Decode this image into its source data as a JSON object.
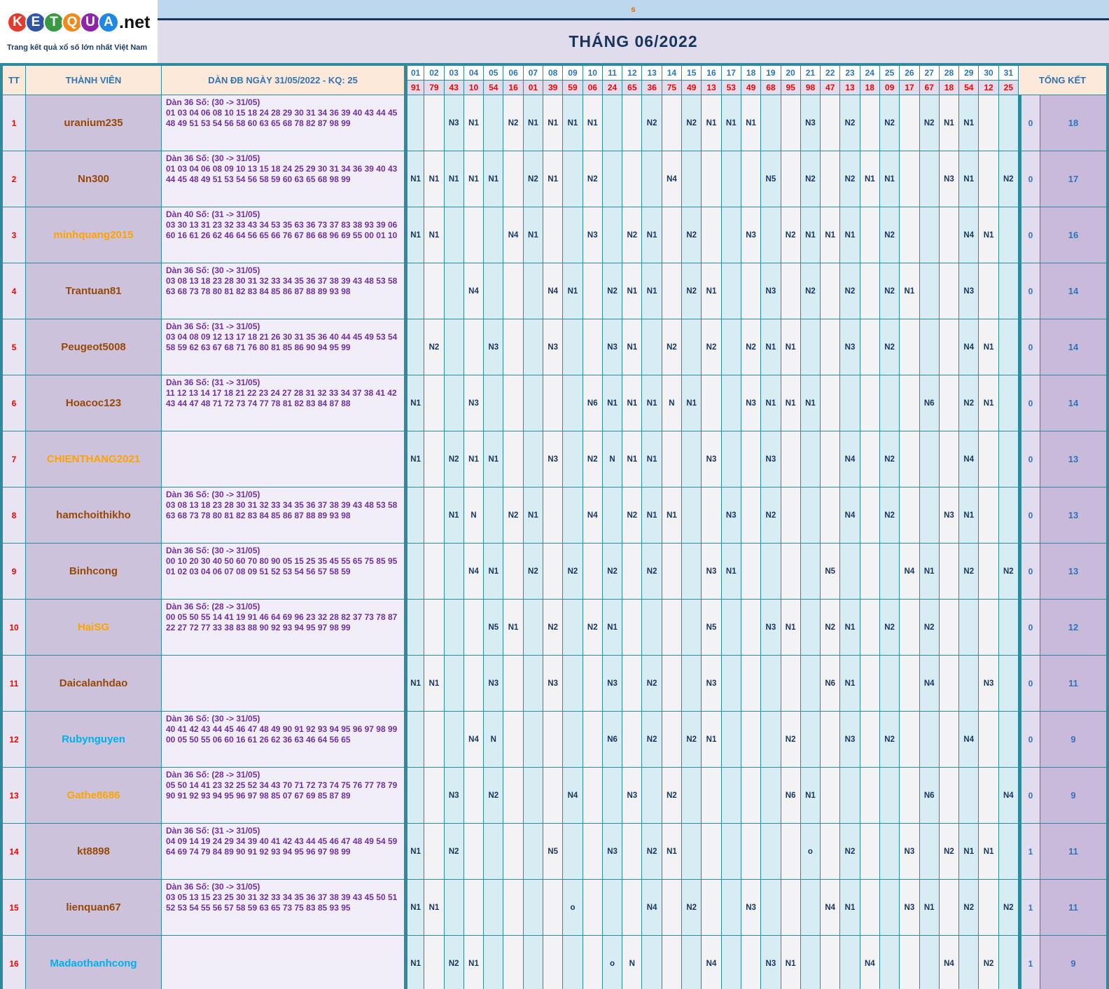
{
  "logo": {
    "letters": [
      {
        "ch": "K",
        "color": "#e23b30"
      },
      {
        "ch": "E",
        "color": "#2f55a4"
      },
      {
        "ch": "T",
        "color": "#3a9a44"
      },
      {
        "ch": "Q",
        "color": "#f08a1d"
      },
      {
        "ch": "U",
        "color": "#8e24aa"
      },
      {
        "ch": "A",
        "color": "#1e88e5"
      }
    ],
    "suffix": ".net",
    "tagline": "Trang kết quả xổ số lớn nhất Việt Nam"
  },
  "top": {
    "s_label": "s",
    "title": "THÁNG 06/2022"
  },
  "colors": {
    "border_teal": "#2e8b9c",
    "header_peach": "#fde9d9",
    "header_blue_text": "#2e75b6",
    "result_red": "#ff0000",
    "nvalue_navy": "#17365d",
    "desc_purple": "#7030a0",
    "member_bg": "#cdc2dc",
    "strip_blue": "#bdd7ee",
    "band_lavender": "#e1dcec",
    "name_brown": "#974806",
    "name_orange": "#ffa300",
    "name_cyan": "#00b0f0"
  },
  "table": {
    "headers": {
      "tt": "TT",
      "member": "THÀNH VIÊN",
      "dan": "DÀN ĐB NGÀY 31/05/2022 - KQ: 25",
      "tongket": "TỔNG KẾT"
    },
    "days": [
      "01",
      "02",
      "03",
      "04",
      "05",
      "06",
      "07",
      "08",
      "09",
      "10",
      "11",
      "12",
      "13",
      "14",
      "15",
      "16",
      "17",
      "18",
      "19",
      "20",
      "21",
      "22",
      "23",
      "24",
      "25",
      "26",
      "27",
      "28",
      "29",
      "30",
      "31"
    ],
    "results": [
      "91",
      "79",
      "43",
      "10",
      "54",
      "16",
      "01",
      "39",
      "59",
      "06",
      "24",
      "65",
      "36",
      "75",
      "49",
      "13",
      "53",
      "49",
      "68",
      "95",
      "98",
      "47",
      "13",
      "18",
      "09",
      "17",
      "67",
      "18",
      "54",
      "12",
      "25"
    ],
    "rows": [
      {
        "tt": "1",
        "name": "uranium235",
        "name_color": "#974806",
        "desc_title": "Dàn 36 Số: (30 -> 31/05)",
        "desc_numbers": "01 03 04 06 08 10 15 18 24 28 29 30 31 34 36 39 40 43 44 45 48 49 51 53 54 56 58 60 63 65 68 78 82 87 98 99",
        "cells": {
          "3": "N3",
          "4": "N1",
          "6": "N2",
          "7": "N1",
          "8": "N1",
          "9": "N1",
          "10": "N1",
          "13": "N2",
          "15": "N2",
          "16": "N1",
          "17": "N1",
          "18": "N1",
          "21": "N3",
          "23": "N2",
          "25": "N2",
          "27": "N2",
          "28": "N1",
          "29": "N1"
        },
        "t1": "0",
        "t2": "18"
      },
      {
        "tt": "2",
        "name": "Nn300",
        "name_color": "#974806",
        "desc_title": "Dàn 36 Số: (30 -> 31/05)",
        "desc_numbers": "01 03 04 06 08 09 10 13 15 18 24 25 29 30 31 34 36 39 40 43 44 45 48 49 51 53 54 56 58 59 60 63 65 68 98 99",
        "cells": {
          "1": "N1",
          "2": "N1",
          "3": "N1",
          "4": "N1",
          "5": "N1",
          "7": "N2",
          "8": "N1",
          "10": "N2",
          "14": "N4",
          "19": "N5",
          "21": "N2",
          "23": "N2",
          "24": "N1",
          "25": "N1",
          "28": "N3",
          "29": "N1",
          "31": "N2"
        },
        "t1": "0",
        "t2": "17"
      },
      {
        "tt": "3",
        "name": "minhquang2015",
        "name_color": "#ffa300",
        "desc_title": "Dàn 40 Số: (31 -> 31/05)",
        "desc_numbers": "03 30 13 31 23 32 33 43 34 53 35 63 36 73 37 83 38 93 39 06 60 16 61 26 62 46 64 56 65 66 76 67 86 68 96 69 55 00 01 10",
        "cells": {
          "1": "N1",
          "2": "N1",
          "6": "N4",
          "7": "N1",
          "10": "N3",
          "12": "N2",
          "13": "N1",
          "15": "N2",
          "18": "N3",
          "20": "N2",
          "21": "N1",
          "22": "N1",
          "23": "N1",
          "25": "N2",
          "29": "N4",
          "30": "N1"
        },
        "t1": "0",
        "t2": "16"
      },
      {
        "tt": "4",
        "name": "Trantuan81",
        "name_color": "#974806",
        "desc_title": "Dàn 36 Số: (30 -> 31/05)",
        "desc_numbers": "03 08 13 18 23 28 30 31 32 33 34 35 36 37 38 39 43 48 53 58 63 68 73 78 80 81 82 83 84 85 86 87 88 89 93 98",
        "cells": {
          "4": "N4",
          "8": "N4",
          "9": "N1",
          "11": "N2",
          "12": "N1",
          "13": "N1",
          "15": "N2",
          "16": "N1",
          "19": "N3",
          "21": "N2",
          "23": "N2",
          "25": "N2",
          "26": "N1",
          "29": "N3"
        },
        "t1": "0",
        "t2": "14"
      },
      {
        "tt": "5",
        "name": "Peugeot5008",
        "name_color": "#974806",
        "desc_title": "Dàn 36 Số: (31 -> 31/05)",
        "desc_numbers": "03 04 08 09 12 13 17 18 21 26 30 31 35 36 40 44 45 49 53 54 58 59 62 63 67 68 71 76 80 81 85 86 90 94 95 99",
        "cells": {
          "2": "N2",
          "5": "N3",
          "8": "N3",
          "11": "N3",
          "12": "N1",
          "14": "N2",
          "16": "N2",
          "18": "N2",
          "19": "N1",
          "20": "N1",
          "23": "N3",
          "25": "N2",
          "29": "N4",
          "30": "N1"
        },
        "t1": "0",
        "t2": "14"
      },
      {
        "tt": "6",
        "name": "Hoacoc123",
        "name_color": "#974806",
        "desc_title": "Dàn 36 Số: (31 -> 31/05)",
        "desc_numbers": "11 12 13 14 17 18 21 22 23 24 27 28 31 32 33 34 37 38 41 42 43 44 47 48 71 72 73 74 77 78 81 82 83 84 87 88",
        "cells": {
          "1": "N1",
          "4": "N3",
          "10": "N6",
          "11": "N1",
          "12": "N1",
          "13": "N1",
          "14": "N",
          "15": "N1",
          "18": "N3",
          "19": "N1",
          "20": "N1",
          "21": "N1",
          "27": "N6",
          "29": "N2",
          "30": "N1"
        },
        "t1": "0",
        "t2": "14"
      },
      {
        "tt": "7",
        "name": "CHIENTHANG2021",
        "name_color": "#ffa300",
        "desc_title": "",
        "desc_numbers": "",
        "cells": {
          "1": "N1",
          "3": "N2",
          "4": "N1",
          "5": "N1",
          "8": "N3",
          "10": "N2",
          "11": "N",
          "12": "N1",
          "13": "N1",
          "16": "N3",
          "19": "N3",
          "23": "N4",
          "25": "N2",
          "29": "N4"
        },
        "t1": "0",
        "t2": "13"
      },
      {
        "tt": "8",
        "name": "hamchoithikho",
        "name_color": "#974806",
        "desc_title": "Dàn 36 Số: (30 -> 31/05)",
        "desc_numbers": "03 08 13 18 23 28 30 31 32 33 34 35 36 37 38 39 43 48 53 58 63 68 73 78 80 81 82 83 84 85 86 87 88 89 93 98",
        "cells": {
          "3": "N1",
          "4": "N",
          "6": "N2",
          "7": "N1",
          "10": "N4",
          "12": "N2",
          "13": "N1",
          "14": "N1",
          "17": "N3",
          "19": "N2",
          "23": "N4",
          "25": "N2",
          "28": "N3",
          "29": "N1"
        },
        "t1": "0",
        "t2": "13"
      },
      {
        "tt": "9",
        "name": "Binhcong",
        "name_color": "#974806",
        "desc_title": "Dàn 36 Số: (30 -> 31/05)",
        "desc_numbers": "00 10 20 30 40 50 60 70 80 90 05 15 25 35 45 55 65 75 85 95 01 02 03 04 06 07 08 09 51 52 53 54 56 57 58 59",
        "cells": {
          "4": "N4",
          "5": "N1",
          "7": "N2",
          "9": "N2",
          "11": "N2",
          "13": "N2",
          "16": "N3",
          "17": "N1",
          "22": "N5",
          "26": "N4",
          "27": "N1",
          "29": "N2",
          "31": "N2"
        },
        "t1": "0",
        "t2": "13"
      },
      {
        "tt": "10",
        "name": "HaiSG",
        "name_color": "#ffa300",
        "desc_title": "Dàn 36 Số: (28 -> 31/05)",
        "desc_numbers": "00 05 50 55 14 41 19 91 46 64 69 96 23 32 28 82 37 73 78 87 22 27 72 77 33 38 83 88 90 92 93 94 95 97 98 99",
        "cells": {
          "5": "N5",
          "6": "N1",
          "8": "N2",
          "10": "N2",
          "11": "N1",
          "16": "N5",
          "19": "N3",
          "20": "N1",
          "22": "N2",
          "23": "N1",
          "25": "N2",
          "27": "N2"
        },
        "t1": "0",
        "t2": "12"
      },
      {
        "tt": "11",
        "name": "Daicalanhdao",
        "name_color": "#974806",
        "desc_title": "",
        "desc_numbers": "",
        "cells": {
          "1": "N1",
          "2": "N1",
          "5": "N3",
          "8": "N3",
          "11": "N3",
          "13": "N2",
          "16": "N3",
          "22": "N6",
          "23": "N1",
          "27": "N4",
          "30": "N3"
        },
        "t1": "0",
        "t2": "11"
      },
      {
        "tt": "12",
        "name": "Rubynguyen",
        "name_color": "#00b0f0",
        "desc_title": "Dàn 36 Số: (30 -> 31/05)",
        "desc_numbers": "40 41 42 43 44 45 46 47 48 49 90 91 92 93 94 95 96 97 98 99 00 05 50 55 06 60 16 61 26 62 36 63 46 64 56 65",
        "cells": {
          "4": "N4",
          "5": "N",
          "11": "N6",
          "13": "N2",
          "15": "N2",
          "16": "N1",
          "20": "N2",
          "23": "N3",
          "25": "N2",
          "29": "N4"
        },
        "t1": "0",
        "t2": "9"
      },
      {
        "tt": "13",
        "name": "Gathe8686",
        "name_color": "#ffa300",
        "desc_title": "Dàn 36 Số: (28 -> 31/05)",
        "desc_numbers": "05 50 14 41 23 32 25 52 34 43 70 71 72 73 74 75 76 77 78 79 90 91 92 93 94 95 96 97 98 85 07 67 69 85 87 89",
        "cells": {
          "3": "N3",
          "5": "N2",
          "9": "N4",
          "12": "N3",
          "14": "N2",
          "20": "N6",
          "21": "N1",
          "27": "N6",
          "31": "N4"
        },
        "t1": "0",
        "t2": "9"
      },
      {
        "tt": "14",
        "name": "kt8898",
        "name_color": "#974806",
        "desc_title": "Dàn 36 Số: (31 -> 31/05)",
        "desc_numbers": "04 09 14 19 24 29 34 39 40 41 42 43 44 45 46 47 48 49 54 59 64 69 74 79 84 89 90 91 92 93 94 95 96 97 98 99",
        "cells": {
          "1": "N1",
          "3": "N2",
          "8": "N5",
          "11": "N3",
          "13": "N2",
          "14": "N1",
          "21": "o",
          "23": "N2",
          "26": "N3",
          "28": "N2",
          "29": "N1",
          "30": "N1"
        },
        "t1": "1",
        "t2": "11"
      },
      {
        "tt": "15",
        "name": "lienquan67",
        "name_color": "#974806",
        "desc_title": "Dàn 36 Số: (30 -> 31/05)",
        "desc_numbers": "03 05 13 15 23 25 30 31 32 33 34 35 36 37 38 39 43 45 50 51 52 53 54 55 56 57 58 59 63 65 73 75 83 85 93 95",
        "cells": {
          "1": "N1",
          "2": "N1",
          "9": "o",
          "13": "N4",
          "15": "N2",
          "18": "N3",
          "22": "N4",
          "23": "N1",
          "26": "N3",
          "27": "N1",
          "29": "N2",
          "31": "N2"
        },
        "t1": "1",
        "t2": "11"
      },
      {
        "tt": "16",
        "name": "Madaothanhcong",
        "name_color": "#00b0f0",
        "desc_title": "",
        "desc_numbers": "",
        "cells": {
          "1": "N1",
          "3": "N2",
          "4": "N1",
          "11": "o",
          "12": "N",
          "16": "N4",
          "19": "N3",
          "20": "N1",
          "24": "N4",
          "28": "N4",
          "30": "N2"
        },
        "t1": "1",
        "t2": "9"
      }
    ]
  }
}
